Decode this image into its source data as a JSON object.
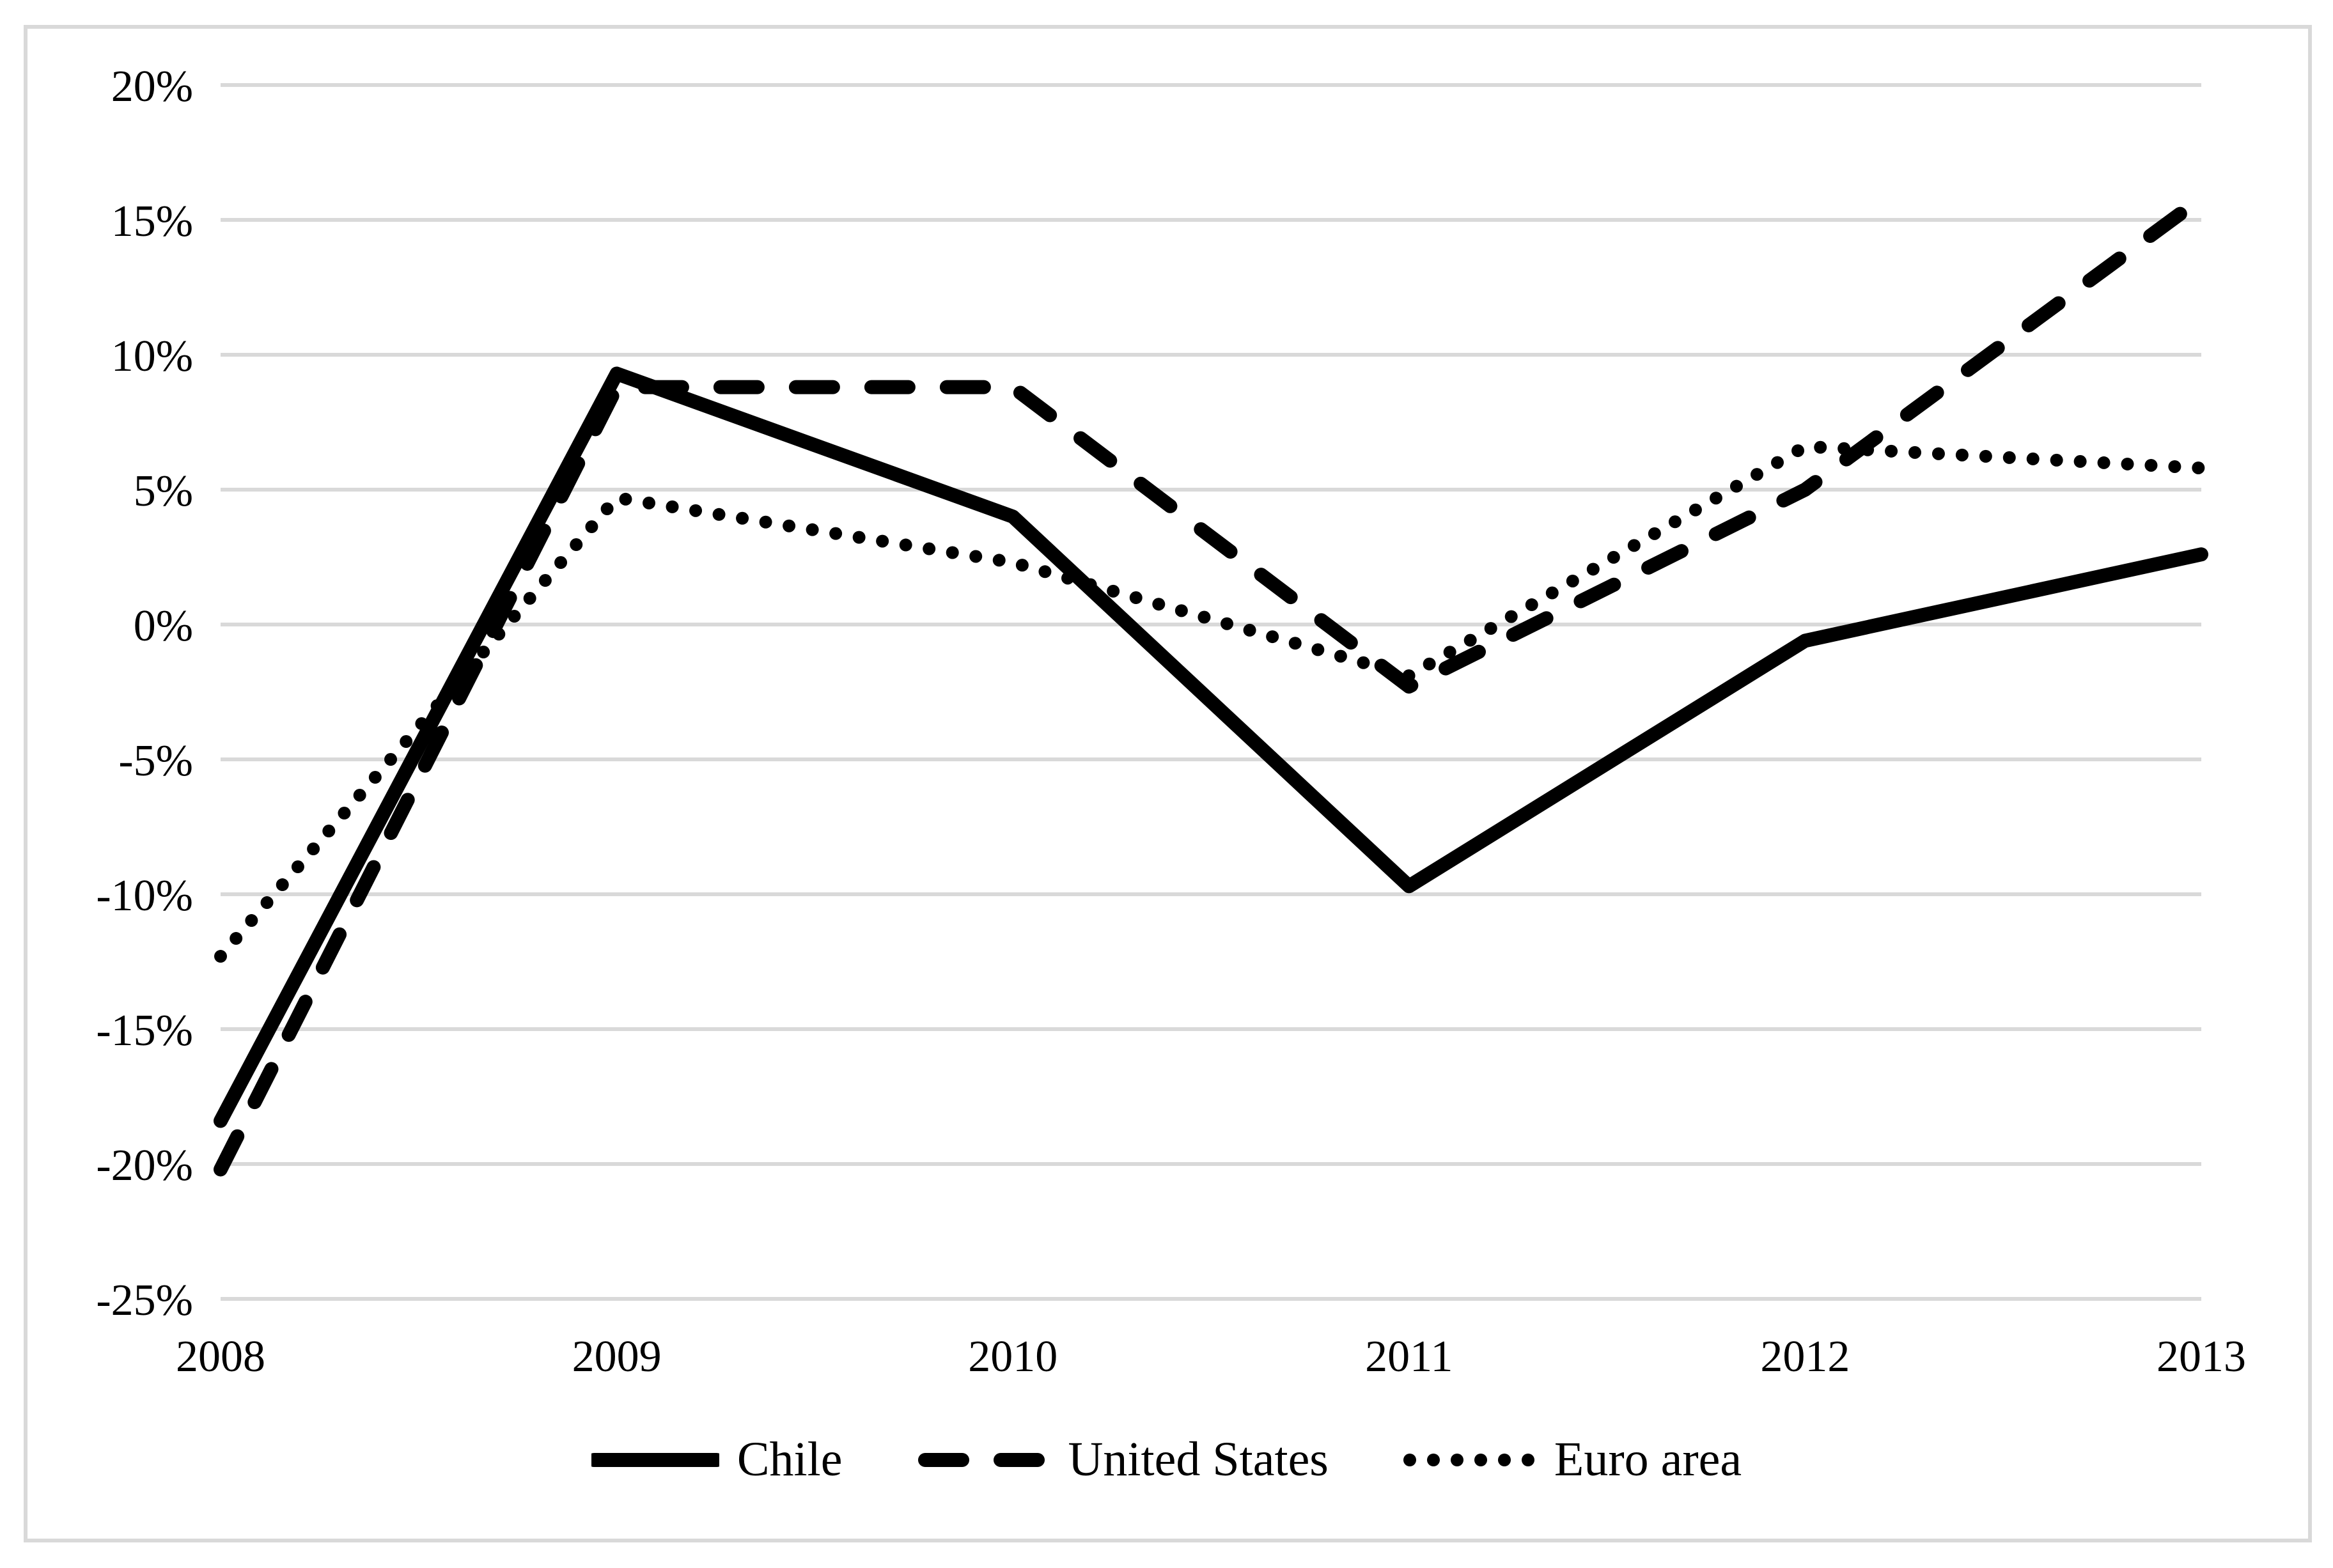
{
  "chart_data": {
    "type": "line",
    "title": "",
    "xlabel": "",
    "ylabel": "",
    "categories": [
      "2008",
      "2009",
      "2010",
      "2011",
      "2012",
      "2013"
    ],
    "yticks": [
      {
        "label": "20%",
        "value": 20
      },
      {
        "label": "15%",
        "value": 15
      },
      {
        "label": "10%",
        "value": 10
      },
      {
        "label": "5%",
        "value": 5
      },
      {
        "label": "0%",
        "value": 0
      },
      {
        "label": "-5%",
        "value": -5
      },
      {
        "label": "-10%",
        "value": -10
      },
      {
        "label": "-15%",
        "value": -15
      },
      {
        "label": "-20%",
        "value": -20
      },
      {
        "label": "-25%",
        "value": -25
      }
    ],
    "ylim": [
      -25,
      20
    ],
    "grid": "horizontal",
    "legend_position": "bottom-center",
    "series": [
      {
        "name": "Chile",
        "style": "solid",
        "values": [
          -18.4,
          9.3,
          4.0,
          -9.7,
          -0.6,
          2.6
        ]
      },
      {
        "name": "United States",
        "style": "dashed",
        "values": [
          -20.2,
          8.8,
          8.8,
          -2.3,
          5.0,
          15.8
        ]
      },
      {
        "name": "Euro area",
        "style": "dotted",
        "values": [
          -12.3,
          4.7,
          2.3,
          -1.9,
          6.6,
          5.8
        ]
      }
    ],
    "colors": {
      "line": "#000000",
      "gridline": "#d9d9d9",
      "frame": "#d9d9d9",
      "background": "#ffffff",
      "text": "#000000"
    }
  }
}
